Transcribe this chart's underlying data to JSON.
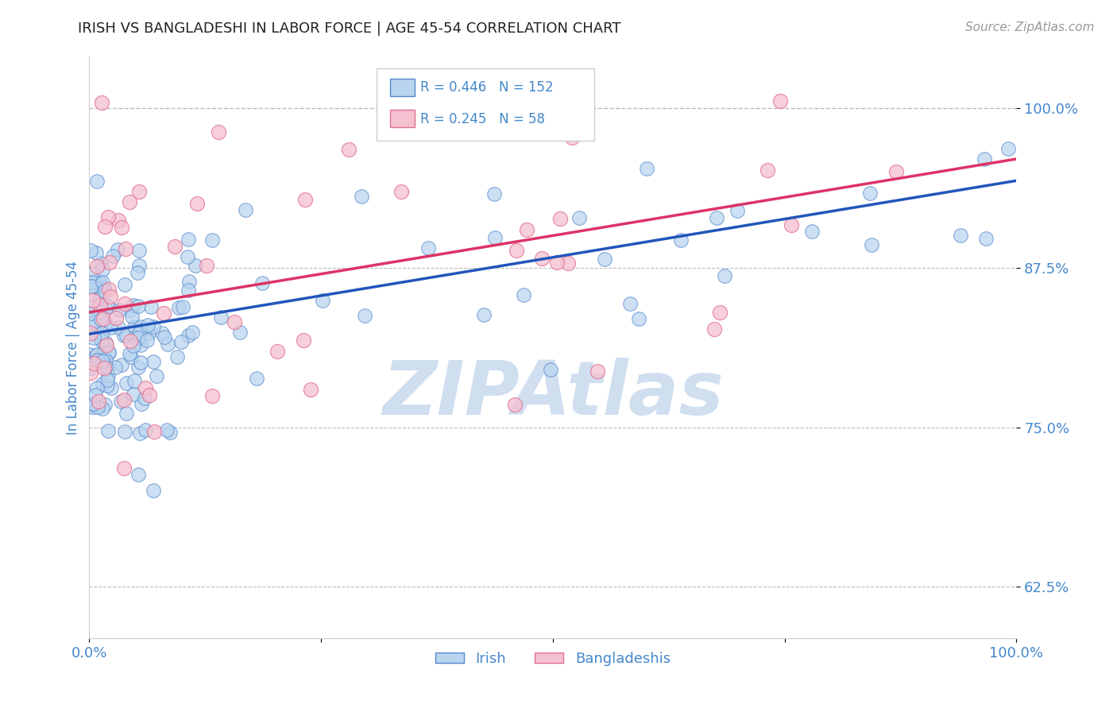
{
  "title": "IRISH VS BANGLADESHI IN LABOR FORCE | AGE 45-54 CORRELATION CHART",
  "source": "Source: ZipAtlas.com",
  "ylabel": "In Labor Force | Age 45-54",
  "xlim": [
    0.0,
    1.0
  ],
  "ylim": [
    0.585,
    1.04
  ],
  "yticks": [
    0.625,
    0.75,
    0.875,
    1.0
  ],
  "ytick_labels": [
    "62.5%",
    "75.0%",
    "87.5%",
    "100.0%"
  ],
  "irish_R": 0.446,
  "irish_N": 152,
  "bangladeshi_R": 0.245,
  "bangladeshi_N": 58,
  "irish_color": "#b8d4ef",
  "irish_edge_color": "#5588cc",
  "bangladeshi_color": "#f5c0d0",
  "bangladeshi_edge_color": "#e07090",
  "irish_line_color": "#2255bb",
  "bangladeshi_line_color": "#dd3366",
  "grid_color": "#bbbbbb",
  "axis_label_color": "#4488cc",
  "title_color": "#222222",
  "watermark_color": "#d0dff0",
  "legend_box_color": "#eeeeee",
  "irish_line_y0": 0.823,
  "irish_line_y1": 0.943,
  "bangladeshi_line_y0": 0.84,
  "bangladeshi_line_y1": 0.96
}
